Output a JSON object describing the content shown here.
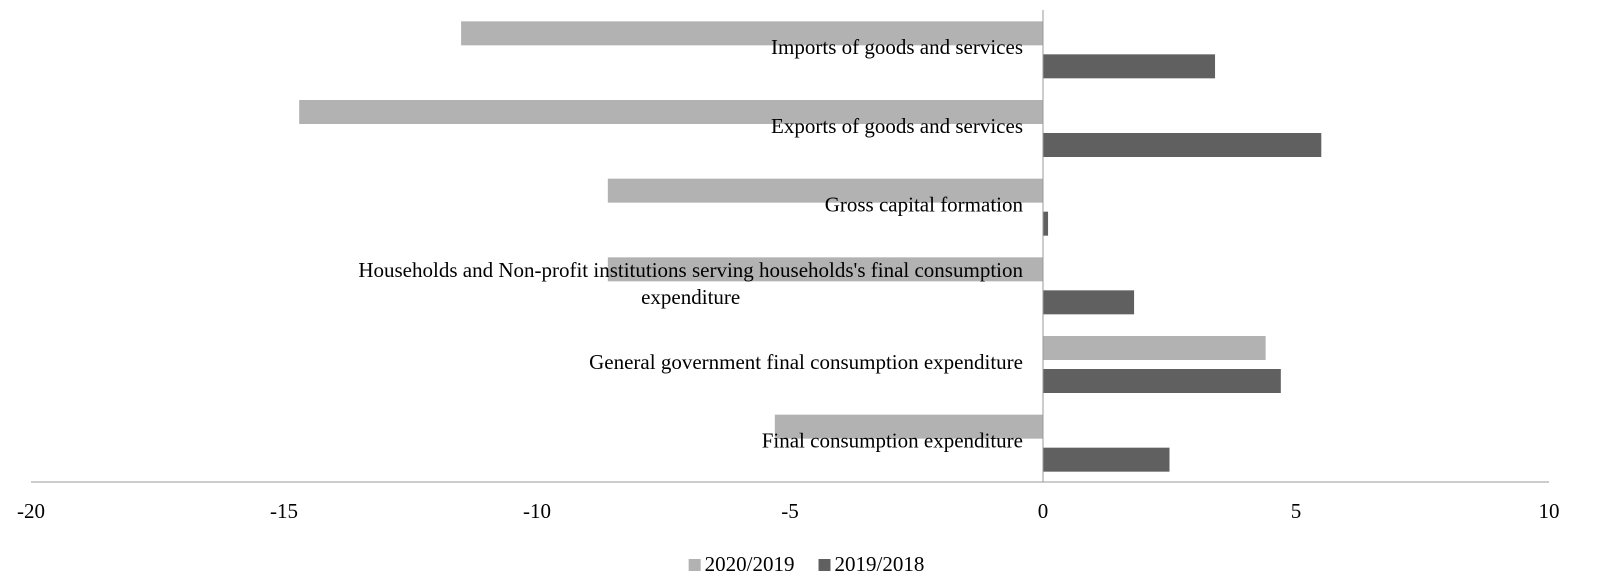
{
  "chart_data": {
    "type": "hbar",
    "categories": [
      "Imports of goods and services",
      "Exports of goods and services",
      "Gross capital formation",
      "Households and Non-profit institutions serving households's final consumption expenditure",
      "General government final consumption expenditure",
      "Final consumption expenditure"
    ],
    "series": [
      {
        "name": "2020/2019",
        "color": "#b2b2b2",
        "values": [
          -11.5,
          -14.7,
          -8.6,
          -8.6,
          4.4,
          -5.3
        ]
      },
      {
        "name": "2019/2018",
        "color": "#606060",
        "values": [
          3.4,
          5.5,
          0.1,
          1.8,
          4.7,
          2.5
        ]
      }
    ],
    "xlim": [
      -20,
      10
    ],
    "xticks": [
      -20,
      -15,
      -10,
      -5,
      0,
      5,
      10
    ],
    "grid": false,
    "legend": "bottom"
  }
}
